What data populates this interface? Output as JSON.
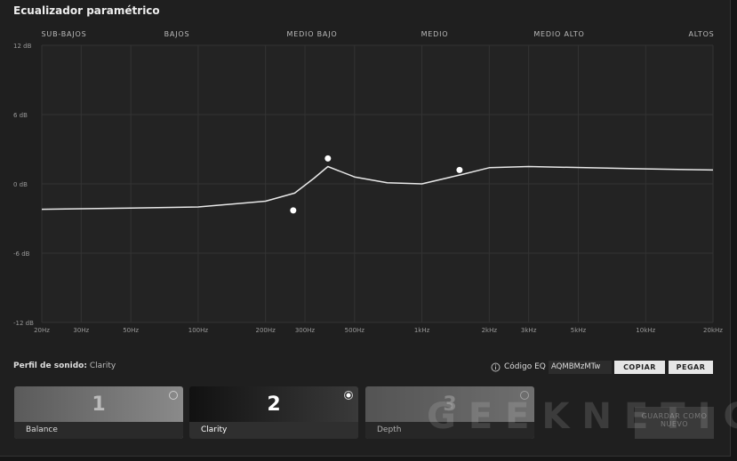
{
  "title": "Ecualizador paramétrico",
  "bands": [
    "SUB-BAJOS",
    "BAJOS",
    "MEDIO BAJO",
    "MEDIO",
    "MEDIO ALTO",
    "ALTOS"
  ],
  "chart_data": {
    "type": "line",
    "xscale": "log",
    "grid": true,
    "xlim": [
      20,
      20000
    ],
    "ylim": [
      -12,
      12
    ],
    "yticks": [
      {
        "value": 12,
        "label": "12 dB"
      },
      {
        "value": 6,
        "label": "6 dB"
      },
      {
        "value": 0,
        "label": "0 dB"
      },
      {
        "value": -6,
        "label": "-6 dB"
      },
      {
        "value": -12,
        "label": "-12 dB"
      }
    ],
    "xticks": [
      {
        "value": 20,
        "label": "20Hz"
      },
      {
        "value": 30,
        "label": "30Hz"
      },
      {
        "value": 50,
        "label": "50Hz"
      },
      {
        "value": 100,
        "label": "100Hz"
      },
      {
        "value": 200,
        "label": "200Hz"
      },
      {
        "value": 300,
        "label": "300Hz"
      },
      {
        "value": 500,
        "label": "500Hz"
      },
      {
        "value": 1000,
        "label": "1kHz"
      },
      {
        "value": 2000,
        "label": "2kHz"
      },
      {
        "value": 3000,
        "label": "3kHz"
      },
      {
        "value": 5000,
        "label": "5kHz"
      },
      {
        "value": 10000,
        "label": "10kHz"
      },
      {
        "value": 20000,
        "label": "20kHz"
      }
    ],
    "x": [
      20,
      50,
      100,
      200,
      270,
      330,
      380,
      500,
      700,
      1000,
      1500,
      2000,
      3000,
      10000,
      20000
    ],
    "series": [
      {
        "color": "#e8e8e8",
        "values": [
          -2.2,
          -2.1,
          -2.0,
          -1.5,
          -0.8,
          0.5,
          1.5,
          0.6,
          0.1,
          0.0,
          0.8,
          1.4,
          1.5,
          1.3,
          1.2
        ]
      }
    ],
    "points": {
      "color": "#ffffff",
      "x": [
        266,
        380,
        1473
      ],
      "values": [
        -2.3,
        2.2,
        1.2
      ]
    }
  },
  "profile": {
    "label": "Perfil de sonido:",
    "name": "Clarity"
  },
  "eq_code": {
    "label": "Código EQ",
    "code": "AQMBMzMTw",
    "copy": "COPIAR",
    "paste": "PEGAR"
  },
  "presets": [
    {
      "number": "1",
      "name": "Balance"
    },
    {
      "number": "2",
      "name": "Clarity"
    },
    {
      "number": "3",
      "name": "Depth"
    }
  ],
  "save": "GUARDAR COMO NUEVO",
  "watermark": "GEEKNETIC"
}
